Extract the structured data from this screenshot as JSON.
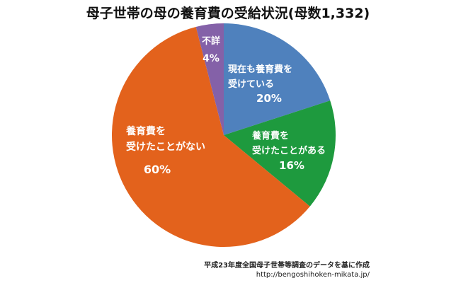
{
  "chart_data": {
    "type": "pie",
    "title": "母子世帯の母の養育費の受給状況(母数1,332)",
    "slices": [
      {
        "key": "receiving-now",
        "label": [
          "現在も養育費を",
          "受けている"
        ],
        "value": 20,
        "value_label": "20%",
        "color": "#4f81bd"
      },
      {
        "key": "received-before",
        "label": [
          "養育費を",
          "受けたことがある"
        ],
        "value": 16,
        "value_label": "16%",
        "color": "#1e9a3e"
      },
      {
        "key": "never-received",
        "label": [
          "養育費を",
          "受けたことがない"
        ],
        "value": 60,
        "value_label": "60%",
        "color": "#e3621c"
      },
      {
        "key": "unknown",
        "label": [
          "不詳"
        ],
        "value": 4,
        "value_label": "4%",
        "color": "#8461a8"
      }
    ]
  },
  "footer": {
    "source": "平成23年度全国母子世帯等調査のデータを基に作成",
    "url": "http://bengoshihoken-mikata.jp/"
  }
}
